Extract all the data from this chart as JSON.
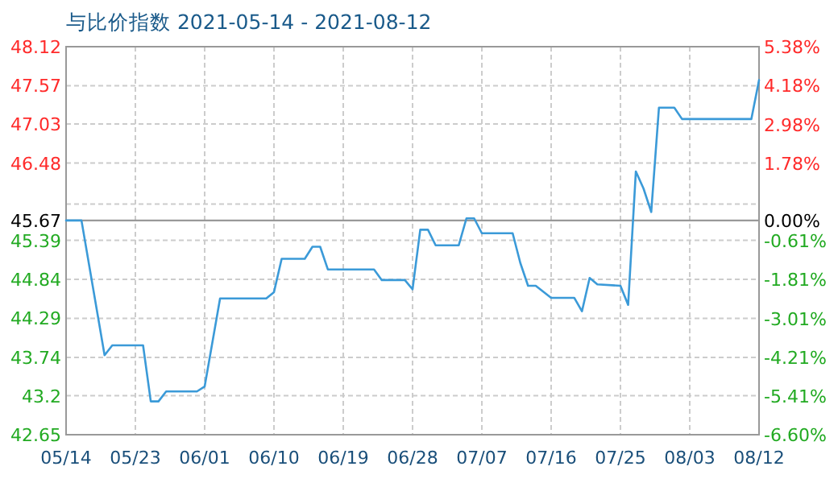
{
  "chart_data": {
    "type": "line",
    "title": "与比价指数 2021-05-14 - 2021-08-12",
    "x": [
      "2021-05-14",
      "2021-05-16",
      "2021-05-19",
      "2021-05-20",
      "2021-05-24",
      "2021-05-25",
      "2021-05-26",
      "2021-05-27",
      "2021-05-31",
      "2021-06-01",
      "2021-06-03",
      "2021-06-09",
      "2021-06-10",
      "2021-06-11",
      "2021-06-14",
      "2021-06-15",
      "2021-06-16",
      "2021-06-17",
      "2021-06-23",
      "2021-06-24",
      "2021-06-27",
      "2021-06-28",
      "2021-06-29",
      "2021-06-30",
      "2021-07-01",
      "2021-07-04",
      "2021-07-05",
      "2021-07-06",
      "2021-07-07",
      "2021-07-11",
      "2021-07-12",
      "2021-07-13",
      "2021-07-14",
      "2021-07-16",
      "2021-07-19",
      "2021-07-20",
      "2021-07-21",
      "2021-07-22",
      "2021-07-25",
      "2021-07-26",
      "2021-07-27",
      "2021-07-28",
      "2021-07-29",
      "2021-07-30",
      "2021-08-01",
      "2021-08-02",
      "2021-08-11",
      "2021-08-12"
    ],
    "series": [
      {
        "color": "#3b9ad8",
        "values": [
          45.67,
          45.67,
          43.77,
          43.91,
          43.91,
          43.12,
          43.12,
          43.26,
          43.26,
          43.33,
          44.57,
          44.57,
          44.66,
          45.13,
          45.13,
          45.3,
          45.3,
          44.98,
          44.98,
          44.83,
          44.83,
          44.7,
          45.54,
          45.54,
          45.32,
          45.32,
          45.7,
          45.7,
          45.49,
          45.49,
          45.07,
          44.75,
          44.75,
          44.58,
          44.58,
          44.39,
          44.86,
          44.77,
          44.75,
          44.48,
          46.36,
          46.12,
          45.79,
          47.26,
          47.26,
          47.1,
          47.1,
          47.65
        ]
      }
    ],
    "xlim": [
      "2021-05-14",
      "2021-08-12"
    ],
    "xticks": [
      {
        "value": "2021-05-14",
        "label": "05/14"
      },
      {
        "value": "2021-05-23",
        "label": "05/23"
      },
      {
        "value": "2021-06-01",
        "label": "06/01"
      },
      {
        "value": "2021-06-10",
        "label": "06/10"
      },
      {
        "value": "2021-06-19",
        "label": "06/19"
      },
      {
        "value": "2021-06-28",
        "label": "06/28"
      },
      {
        "value": "2021-07-07",
        "label": "07/07"
      },
      {
        "value": "2021-07-16",
        "label": "07/16"
      },
      {
        "value": "2021-07-25",
        "label": "07/25"
      },
      {
        "value": "2021-08-03",
        "label": "08/03"
      },
      {
        "value": "2021-08-12",
        "label": "08/12"
      }
    ],
    "ylim": [
      42.65,
      48.12
    ],
    "yticks": [
      42.65,
      43.2,
      43.74,
      44.29,
      44.84,
      45.39,
      45.67,
      {
        "value": 45.9,
        "label": null
      },
      46.48,
      47.03,
      47.57,
      48.12
    ],
    "y2lim": [
      -6.6,
      5.38
    ],
    "y2ticks": [
      {
        "value": -6.6,
        "label": "-6.60%"
      },
      {
        "value": -5.41,
        "label": "-5.41%"
      },
      {
        "value": -4.21,
        "label": "-4.21%"
      },
      {
        "value": -3.01,
        "label": "-3.01%"
      },
      {
        "value": -1.81,
        "label": "-1.81%"
      },
      {
        "value": -0.61,
        "label": "-0.61%"
      },
      {
        "value": 0,
        "label": "0.00%"
      },
      {
        "value": 1.78,
        "label": "1.78%"
      },
      {
        "value": 2.98,
        "label": "2.98%"
      },
      {
        "value": 4.18,
        "label": "4.18%"
      },
      {
        "value": 5.38,
        "label": "5.38%"
      }
    ],
    "ref_lines": [
      {
        "axis": "y",
        "value": 45.67,
        "color": "#999999"
      }
    ],
    "grid": true
  }
}
